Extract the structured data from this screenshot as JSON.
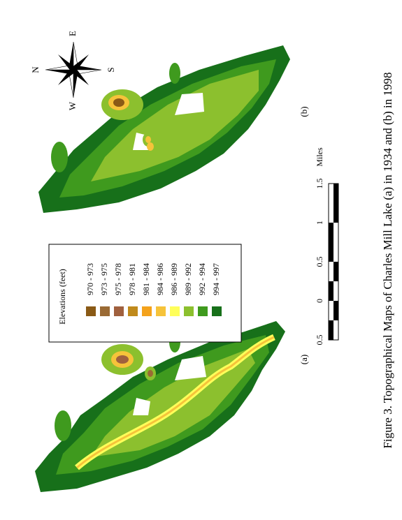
{
  "figure": {
    "caption": "Figure 3.  Topographical Maps of Charles Mill Lake (a) in 1934 and (b) in 1998",
    "panel_a": "(a)",
    "panel_b": "(b)",
    "legend": {
      "title": "Elevations (feet)",
      "items": [
        {
          "label": "970 - 973",
          "color": "#8a5a16"
        },
        {
          "label": "973 - 975",
          "color": "#9a6a34"
        },
        {
          "label": "975 - 978",
          "color": "#a0603e"
        },
        {
          "label": "978 - 981",
          "color": "#c08a1c"
        },
        {
          "label": "981 - 984",
          "color": "#f4a21c"
        },
        {
          "label": "984 - 986",
          "color": "#f6c33a"
        },
        {
          "label": "986 - 989",
          "color": "#ffff5a"
        },
        {
          "label": "989 - 992",
          "color": "#8cc02e"
        },
        {
          "label": "992 - 994",
          "color": "#3f9a1e"
        },
        {
          "label": "994 - 997",
          "color": "#17701a"
        }
      ]
    },
    "scale": {
      "labels": [
        "0.5",
        "0",
        "0.5",
        "1",
        "1.5"
      ],
      "unit": "Miles"
    },
    "compass": {
      "north": "N",
      "south": "S",
      "east": "E",
      "west": "W"
    }
  }
}
